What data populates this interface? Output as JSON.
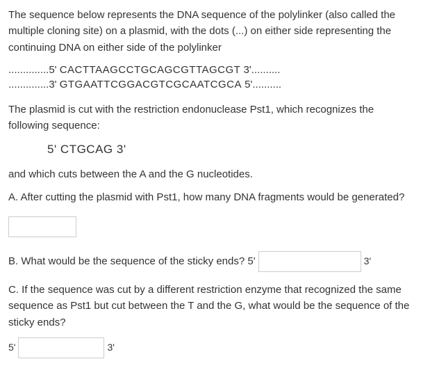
{
  "intro": "The sequence  below represents the DNA sequence of the polylinker (also called the multiple cloning site) on a plasmid, with the dots (...) on either side representing the continuing DNA on either side of the polylinker",
  "seq": {
    "top_prefix": "..............5' ",
    "top_seq": "CACTTAAGCCTGCAGCGTTAGCGT",
    "top_suffix": " 3'..........",
    "bot_prefix": "..............3' ",
    "bot_seq": "GTGAATTCGGACGTCGCAATCGCA",
    "bot_suffix": " 5'.........."
  },
  "para2": "The plasmid is cut with the restriction endonuclease Pst1, which recognizes the following sequence:",
  "recognition": "5' CTGCAG 3'",
  "para3": "and which cuts between the A and the G nucleotides.",
  "qA": "A. After cutting the plasmid with Pst1, how many DNA fragments would be generated?",
  "qB_prefix": "B. What would be the sequence of the sticky ends? 5'",
  "qB_suffix": "3'",
  "qC": "C. If the sequence was cut by a different restriction enzyme that recognized the same sequence as Pst1 but cut between the T and the G, what would be the sequence of the sticky ends?",
  "qC_prefix": "5'",
  "qC_suffix": "3'",
  "colors": {
    "text": "#333333",
    "border": "#cccccc",
    "bg": "#ffffff"
  }
}
